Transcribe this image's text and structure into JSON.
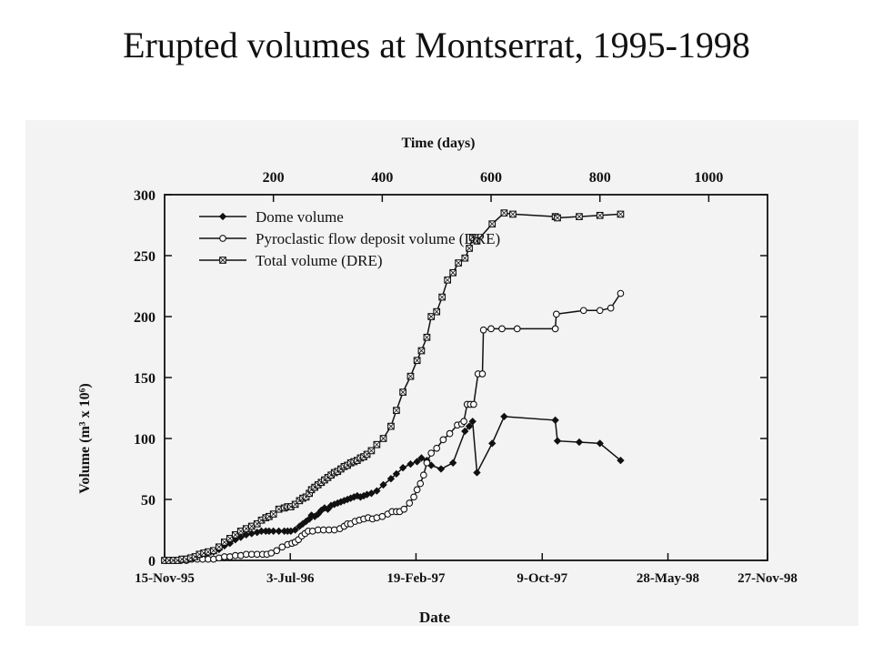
{
  "slide": {
    "title": "Erupted volumes at Montserrat, 1995-1998"
  },
  "chart_data": {
    "type": "line",
    "title": "",
    "xlabel": "Date",
    "x2label": "Time (days)",
    "ylabel": "Volume (m³ x 10⁶)",
    "x_unit": "days since 15-Nov-95",
    "xlim": [
      0,
      1108
    ],
    "ylim": [
      0,
      300
    ],
    "x_date_ticks": [
      {
        "day": 0,
        "label": "15-Nov-95"
      },
      {
        "day": 231,
        "label": "3-Jul-96"
      },
      {
        "day": 462,
        "label": "19-Feb-97"
      },
      {
        "day": 694,
        "label": "9-Oct-97"
      },
      {
        "day": 925,
        "label": "28-May-98"
      },
      {
        "day": 1108,
        "label": "27-Nov-98"
      }
    ],
    "x_day_ticks": [
      200,
      400,
      600,
      800,
      1000
    ],
    "y_ticks": [
      0,
      50,
      100,
      150,
      200,
      250,
      300
    ],
    "legend_position": "top-left",
    "grid": false,
    "series": [
      {
        "name": "Dome volume",
        "marker": "filled-diamond",
        "points": [
          [
            0,
            0
          ],
          [
            8,
            0
          ],
          [
            16,
            0
          ],
          [
            24,
            0
          ],
          [
            32,
            1
          ],
          [
            40,
            1
          ],
          [
            48,
            2
          ],
          [
            56,
            3
          ],
          [
            64,
            4
          ],
          [
            72,
            5
          ],
          [
            80,
            6
          ],
          [
            90,
            7
          ],
          [
            100,
            9
          ],
          [
            110,
            12
          ],
          [
            120,
            14
          ],
          [
            130,
            17
          ],
          [
            140,
            19
          ],
          [
            150,
            21
          ],
          [
            160,
            22
          ],
          [
            170,
            23
          ],
          [
            178,
            24
          ],
          [
            186,
            24
          ],
          [
            192,
            24
          ],
          [
            200,
            24
          ],
          [
            210,
            24
          ],
          [
            220,
            24
          ],
          [
            226,
            24
          ],
          [
            232,
            24
          ],
          [
            240,
            25
          ],
          [
            248,
            28
          ],
          [
            254,
            30
          ],
          [
            260,
            32
          ],
          [
            266,
            34
          ],
          [
            270,
            37
          ],
          [
            276,
            36
          ],
          [
            282,
            38
          ],
          [
            288,
            41
          ],
          [
            294,
            43
          ],
          [
            300,
            42
          ],
          [
            306,
            45
          ],
          [
            312,
            46
          ],
          [
            318,
            47
          ],
          [
            324,
            48
          ],
          [
            330,
            49
          ],
          [
            336,
            50
          ],
          [
            342,
            51
          ],
          [
            348,
            52
          ],
          [
            354,
            53
          ],
          [
            360,
            52
          ],
          [
            366,
            53
          ],
          [
            372,
            54
          ],
          [
            380,
            55
          ],
          [
            390,
            57
          ],
          [
            402,
            62
          ],
          [
            416,
            67
          ],
          [
            426,
            71
          ],
          [
            438,
            76
          ],
          [
            452,
            79
          ],
          [
            464,
            81
          ],
          [
            472,
            84
          ],
          [
            482,
            82
          ],
          [
            490,
            78
          ],
          [
            508,
            75
          ],
          [
            530,
            80
          ],
          [
            552,
            106
          ],
          [
            560,
            110
          ],
          [
            566,
            114
          ],
          [
            574,
            72
          ],
          [
            602,
            96
          ],
          [
            624,
            118
          ],
          [
            718,
            115
          ],
          [
            722,
            98
          ],
          [
            762,
            97
          ],
          [
            800,
            96
          ],
          [
            838,
            82
          ]
        ]
      },
      {
        "name": "Pyroclastic flow deposit volume (DRE)",
        "marker": "open-circle",
        "points": [
          [
            0,
            0
          ],
          [
            10,
            0
          ],
          [
            20,
            0
          ],
          [
            30,
            0
          ],
          [
            40,
            0
          ],
          [
            50,
            1
          ],
          [
            60,
            1
          ],
          [
            70,
            1
          ],
          [
            80,
            1
          ],
          [
            90,
            1
          ],
          [
            100,
            2
          ],
          [
            110,
            3
          ],
          [
            120,
            3
          ],
          [
            130,
            4
          ],
          [
            140,
            4
          ],
          [
            150,
            5
          ],
          [
            160,
            5
          ],
          [
            170,
            5
          ],
          [
            180,
            5
          ],
          [
            188,
            5
          ],
          [
            196,
            6
          ],
          [
            206,
            8
          ],
          [
            216,
            11
          ],
          [
            226,
            13
          ],
          [
            234,
            14
          ],
          [
            240,
            15
          ],
          [
            246,
            17
          ],
          [
            252,
            20
          ],
          [
            258,
            22
          ],
          [
            264,
            24
          ],
          [
            272,
            24
          ],
          [
            282,
            25
          ],
          [
            292,
            25
          ],
          [
            302,
            25
          ],
          [
            312,
            25
          ],
          [
            322,
            26
          ],
          [
            330,
            28
          ],
          [
            336,
            30
          ],
          [
            342,
            30
          ],
          [
            350,
            32
          ],
          [
            358,
            33
          ],
          [
            366,
            34
          ],
          [
            374,
            35
          ],
          [
            382,
            34
          ],
          [
            390,
            35
          ],
          [
            400,
            36
          ],
          [
            410,
            38
          ],
          [
            418,
            40
          ],
          [
            426,
            40
          ],
          [
            432,
            40
          ],
          [
            440,
            42
          ],
          [
            450,
            47
          ],
          [
            458,
            52
          ],
          [
            464,
            58
          ],
          [
            470,
            63
          ],
          [
            476,
            70
          ],
          [
            482,
            80
          ],
          [
            490,
            88
          ],
          [
            500,
            92
          ],
          [
            512,
            99
          ],
          [
            524,
            104
          ],
          [
            538,
            111
          ],
          [
            546,
            112
          ],
          [
            550,
            114
          ],
          [
            556,
            128
          ],
          [
            562,
            128
          ],
          [
            568,
            128
          ],
          [
            576,
            153
          ],
          [
            584,
            153
          ],
          [
            586,
            189
          ],
          [
            600,
            190
          ],
          [
            620,
            190
          ],
          [
            648,
            190
          ],
          [
            718,
            190
          ],
          [
            720,
            202
          ],
          [
            770,
            205
          ],
          [
            800,
            205
          ],
          [
            820,
            207
          ],
          [
            838,
            219
          ]
        ]
      },
      {
        "name": "Total volume (DRE)",
        "marker": "open-square-x",
        "points": [
          [
            0,
            0
          ],
          [
            8,
            0
          ],
          [
            16,
            0
          ],
          [
            24,
            0
          ],
          [
            32,
            1
          ],
          [
            40,
            1
          ],
          [
            48,
            2
          ],
          [
            56,
            3
          ],
          [
            64,
            5
          ],
          [
            72,
            6
          ],
          [
            80,
            7
          ],
          [
            90,
            8
          ],
          [
            100,
            11
          ],
          [
            110,
            15
          ],
          [
            120,
            18
          ],
          [
            130,
            21
          ],
          [
            140,
            24
          ],
          [
            150,
            26
          ],
          [
            160,
            28
          ],
          [
            170,
            30
          ],
          [
            178,
            33
          ],
          [
            186,
            35
          ],
          [
            192,
            36
          ],
          [
            200,
            38
          ],
          [
            210,
            42
          ],
          [
            220,
            43
          ],
          [
            226,
            44
          ],
          [
            232,
            44
          ],
          [
            240,
            46
          ],
          [
            248,
            49
          ],
          [
            254,
            51
          ],
          [
            260,
            52
          ],
          [
            266,
            55
          ],
          [
            270,
            58
          ],
          [
            276,
            60
          ],
          [
            282,
            62
          ],
          [
            288,
            64
          ],
          [
            294,
            66
          ],
          [
            300,
            68
          ],
          [
            306,
            70
          ],
          [
            312,
            72
          ],
          [
            318,
            73
          ],
          [
            324,
            75
          ],
          [
            330,
            77
          ],
          [
            336,
            78
          ],
          [
            342,
            80
          ],
          [
            348,
            81
          ],
          [
            354,
            82
          ],
          [
            360,
            84
          ],
          [
            366,
            85
          ],
          [
            372,
            87
          ],
          [
            380,
            90
          ],
          [
            390,
            95
          ],
          [
            402,
            100
          ],
          [
            416,
            110
          ],
          [
            426,
            123
          ],
          [
            438,
            138
          ],
          [
            452,
            151
          ],
          [
            464,
            164
          ],
          [
            472,
            172
          ],
          [
            482,
            183
          ],
          [
            490,
            200
          ],
          [
            500,
            204
          ],
          [
            510,
            216
          ],
          [
            520,
            230
          ],
          [
            530,
            236
          ],
          [
            540,
            244
          ],
          [
            552,
            248
          ],
          [
            560,
            256
          ],
          [
            566,
            265
          ],
          [
            574,
            262
          ],
          [
            602,
            276
          ],
          [
            624,
            285
          ],
          [
            640,
            284
          ],
          [
            718,
            282
          ],
          [
            722,
            281
          ],
          [
            762,
            282
          ],
          [
            800,
            283
          ],
          [
            838,
            284
          ]
        ]
      }
    ]
  }
}
